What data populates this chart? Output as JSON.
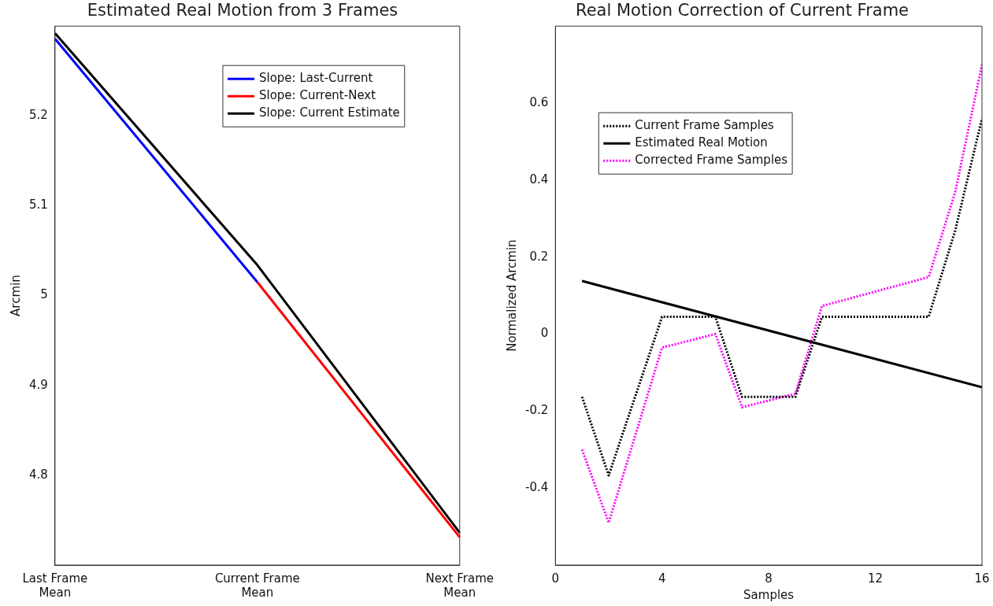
{
  "chart_data": [
    {
      "type": "line",
      "title": "Estimated Real Motion from 3 Frames",
      "ylabel": "Arcmin",
      "categories": [
        "Last Frame Mean",
        "Current Frame Mean",
        "Next Frame Mean"
      ],
      "series": [
        {
          "name": "Slope: Last-Current",
          "color": "#0000ff",
          "values": [
            5.286,
            5.015,
            null
          ]
        },
        {
          "name": "Slope: Current-Next",
          "color": "#ff0000",
          "values": [
            null,
            5.015,
            4.731
          ]
        },
        {
          "name": "Slope: Current Estimate",
          "color": "#000000",
          "values": [
            5.292,
            5.034,
            4.736
          ]
        }
      ],
      "ylim": [
        4.7,
        5.3
      ],
      "yticks": [
        4.8,
        4.9,
        5,
        5.1,
        5.2
      ],
      "grid": false,
      "legend": "top right",
      "line_style": "solid"
    },
    {
      "type": "line",
      "title": "Real Motion Correction of Current Frame",
      "xlabel": "Samples",
      "ylabel": "Normalized Arcmin",
      "x": [
        1,
        2,
        4,
        6,
        7,
        9,
        10,
        14,
        15,
        16
      ],
      "series": [
        {
          "name": "Current Frame Samples",
          "color": "#000000",
          "line_style": "dotted",
          "values": [
            -0.163,
            -0.367,
            0.045,
            0.045,
            -0.163,
            -0.163,
            0.045,
            0.045,
            0.27,
            0.56
          ]
        },
        {
          "name": "Estimated Real Motion",
          "color": "#000000",
          "line_style": "solid",
          "x": [
            1,
            16
          ],
          "values": [
            0.138,
            -0.138
          ]
        },
        {
          "name": "Corrected Frame Samples",
          "color": "#ff00ff",
          "line_style": "dotted",
          "values": [
            -0.3,
            -0.49,
            -0.035,
            0.0,
            -0.19,
            -0.155,
            0.073,
            0.148,
            0.37,
            0.7
          ]
        }
      ],
      "xlim": [
        0,
        16
      ],
      "xticks": [
        0,
        4,
        8,
        12,
        16
      ],
      "ylim": [
        -0.6,
        0.8
      ],
      "yticks": [
        -0.4,
        -0.2,
        0,
        0.2,
        0.4,
        0.6
      ],
      "grid": false,
      "legend": "top left"
    }
  ]
}
